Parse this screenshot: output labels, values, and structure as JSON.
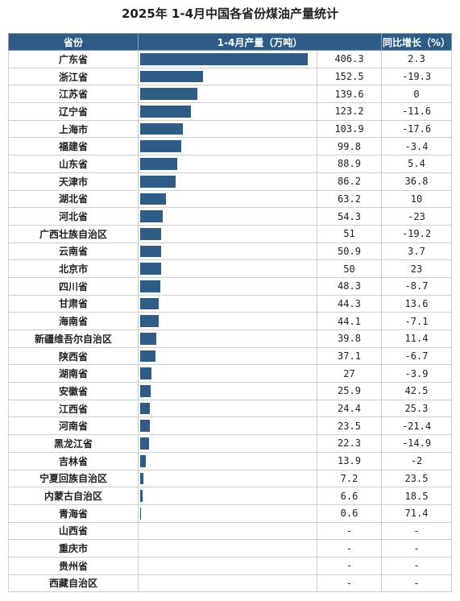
{
  "title": "2025年 1-4月中国各省份煤油产量统计",
  "headers": {
    "province": "省份",
    "output": "1-4月产量（万吨）",
    "growth": "同比增长（%）"
  },
  "colors": {
    "header_bg": "#2e5c86",
    "bar": "#2e5c86"
  },
  "chart_data": {
    "type": "bar",
    "title": "2025年 1-4月中国各省份煤油产量统计",
    "xlabel": "1-4月产量（万吨）",
    "ylabel": "省份",
    "xlim": [
      0,
      406.3
    ],
    "rows": [
      {
        "province": "广东省",
        "output": "406.3",
        "growth": "2.3",
        "value": 406.3
      },
      {
        "province": "浙江省",
        "output": "152.5",
        "growth": "-19.3",
        "value": 152.5
      },
      {
        "province": "江苏省",
        "output": "139.6",
        "growth": "0",
        "value": 139.6
      },
      {
        "province": "辽宁省",
        "output": "123.2",
        "growth": "-11.6",
        "value": 123.2
      },
      {
        "province": "上海市",
        "output": "103.9",
        "growth": "-17.6",
        "value": 103.9
      },
      {
        "province": "福建省",
        "output": "99.8",
        "growth": "-3.4",
        "value": 99.8
      },
      {
        "province": "山东省",
        "output": "88.9",
        "growth": "5.4",
        "value": 88.9
      },
      {
        "province": "天津市",
        "output": "86.2",
        "growth": "36.8",
        "value": 86.2
      },
      {
        "province": "湖北省",
        "output": "63.2",
        "growth": "10",
        "value": 63.2
      },
      {
        "province": "河北省",
        "output": "54.3",
        "growth": "-23",
        "value": 54.3
      },
      {
        "province": "广西壮族自治区",
        "output": "51",
        "growth": "-19.2",
        "value": 51
      },
      {
        "province": "云南省",
        "output": "50.9",
        "growth": "3.7",
        "value": 50.9
      },
      {
        "province": "北京市",
        "output": "50",
        "growth": "23",
        "value": 50
      },
      {
        "province": "四川省",
        "output": "48.3",
        "growth": "-8.7",
        "value": 48.3
      },
      {
        "province": "甘肃省",
        "output": "44.3",
        "growth": "13.6",
        "value": 44.3
      },
      {
        "province": "海南省",
        "output": "44.1",
        "growth": "-7.1",
        "value": 44.1
      },
      {
        "province": "新疆维吾尔自治区",
        "output": "39.8",
        "growth": "11.4",
        "value": 39.8
      },
      {
        "province": "陕西省",
        "output": "37.1",
        "growth": "-6.7",
        "value": 37.1
      },
      {
        "province": "湖南省",
        "output": "27",
        "growth": "-3.9",
        "value": 27
      },
      {
        "province": "安徽省",
        "output": "25.9",
        "growth": "42.5",
        "value": 25.9
      },
      {
        "province": "江西省",
        "output": "24.4",
        "growth": "25.3",
        "value": 24.4
      },
      {
        "province": "河南省",
        "output": "23.5",
        "growth": "-21.4",
        "value": 23.5
      },
      {
        "province": "黑龙江省",
        "output": "22.3",
        "growth": "-14.9",
        "value": 22.3
      },
      {
        "province": "吉林省",
        "output": "13.9",
        "growth": "-2",
        "value": 13.9
      },
      {
        "province": "宁夏回族自治区",
        "output": "7.2",
        "growth": "23.5",
        "value": 7.2
      },
      {
        "province": "内蒙古自治区",
        "output": "6.6",
        "growth": "18.5",
        "value": 6.6
      },
      {
        "province": "青海省",
        "output": "0.6",
        "growth": "71.4",
        "value": 0.6
      },
      {
        "province": "山西省",
        "output": "-",
        "growth": "-",
        "value": 0
      },
      {
        "province": "重庆市",
        "output": "-",
        "growth": "-",
        "value": 0
      },
      {
        "province": "贵州省",
        "output": "-",
        "growth": "-",
        "value": 0
      },
      {
        "province": "西藏自治区",
        "output": "-",
        "growth": "-",
        "value": 0
      }
    ]
  }
}
